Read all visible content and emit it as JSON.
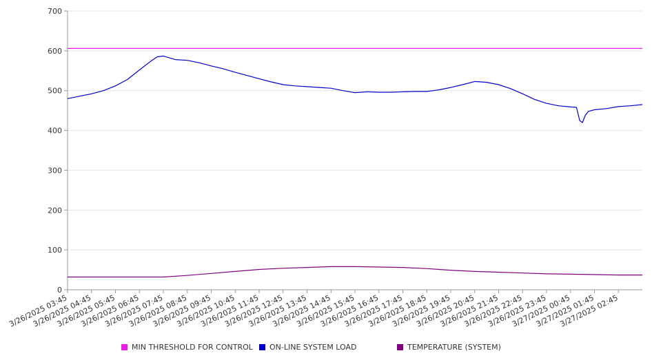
{
  "chart_data": {
    "type": "line",
    "ylim": [
      0,
      700
    ],
    "y_ticks": [
      0,
      100,
      200,
      300,
      400,
      500,
      600,
      700
    ],
    "x_range": [
      "3/26/2025 03:45",
      "3/27/2025 03:45"
    ],
    "x_tick_labels": [
      "3/26/2025 03:45",
      "3/26/2025 04:45",
      "3/26/2025 05:45",
      "3/26/2025 06:45",
      "3/26/2025 07:45",
      "3/26/2025 08:45",
      "3/26/2025 09:45",
      "3/26/2025 10:45",
      "3/26/2025 11:45",
      "3/26/2025 12:45",
      "3/26/2025 13:45",
      "3/26/2025 14:45",
      "3/26/2025 15:45",
      "3/26/2025 16:45",
      "3/26/2025 17:45",
      "3/26/2025 18:45",
      "3/26/2025 19:45",
      "3/26/2025 20:45",
      "3/26/2025 21:45",
      "3/26/2025 22:45",
      "3/26/2025 23:45",
      "3/27/2025 00:45",
      "3/27/2025 01:45",
      "3/27/2025 02:45"
    ],
    "grid": true,
    "legend_position": "bottom",
    "series": [
      {
        "name": "MIN THRESHOLD FOR CONTROL",
        "color": "#e61ee6",
        "points": [
          [
            "3/26/2025 03:45",
            606
          ],
          [
            "3/27/2025 03:45",
            606
          ]
        ]
      },
      {
        "name": "ON-LINE SYSTEM LOAD",
        "color": "#0000cc",
        "points": [
          [
            "3/26/2025 03:45",
            480
          ],
          [
            "3/26/2025 04:15",
            486
          ],
          [
            "3/26/2025 04:45",
            492
          ],
          [
            "3/26/2025 05:15",
            500
          ],
          [
            "3/26/2025 05:45",
            512
          ],
          [
            "3/26/2025 06:15",
            528
          ],
          [
            "3/26/2025 06:45",
            552
          ],
          [
            "3/26/2025 07:15",
            575
          ],
          [
            "3/26/2025 07:30",
            585
          ],
          [
            "3/26/2025 07:45",
            587
          ],
          [
            "3/26/2025 08:15",
            578
          ],
          [
            "3/26/2025 08:45",
            576
          ],
          [
            "3/26/2025 09:15",
            570
          ],
          [
            "3/26/2025 09:45",
            562
          ],
          [
            "3/26/2025 10:15",
            555
          ],
          [
            "3/26/2025 10:45",
            546
          ],
          [
            "3/26/2025 11:15",
            538
          ],
          [
            "3/26/2025 11:45",
            530
          ],
          [
            "3/26/2025 12:15",
            522
          ],
          [
            "3/26/2025 12:45",
            515
          ],
          [
            "3/26/2025 13:15",
            512
          ],
          [
            "3/26/2025 13:45",
            510
          ],
          [
            "3/26/2025 14:15",
            508
          ],
          [
            "3/26/2025 14:45",
            506
          ],
          [
            "3/26/2025 15:15",
            500
          ],
          [
            "3/26/2025 15:45",
            495
          ],
          [
            "3/26/2025 16:15",
            497
          ],
          [
            "3/26/2025 16:45",
            496
          ],
          [
            "3/26/2025 17:15",
            496
          ],
          [
            "3/26/2025 17:45",
            497
          ],
          [
            "3/26/2025 18:15",
            498
          ],
          [
            "3/26/2025 18:45",
            498
          ],
          [
            "3/26/2025 19:15",
            502
          ],
          [
            "3/26/2025 19:45",
            508
          ],
          [
            "3/26/2025 20:15",
            515
          ],
          [
            "3/26/2025 20:45",
            523
          ],
          [
            "3/26/2025 21:15",
            521
          ],
          [
            "3/26/2025 21:45",
            515
          ],
          [
            "3/26/2025 22:15",
            505
          ],
          [
            "3/26/2025 22:45",
            492
          ],
          [
            "3/26/2025 23:15",
            478
          ],
          [
            "3/26/2025 23:45",
            468
          ],
          [
            "3/27/2025 00:15",
            462
          ],
          [
            "3/27/2025 00:45",
            459
          ],
          [
            "3/27/2025 01:00",
            458
          ],
          [
            "3/27/2025 01:08",
            425
          ],
          [
            "3/27/2025 01:15",
            420
          ],
          [
            "3/27/2025 01:22",
            438
          ],
          [
            "3/27/2025 01:30",
            448
          ],
          [
            "3/27/2025 01:45",
            452
          ],
          [
            "3/27/2025 02:15",
            455
          ],
          [
            "3/27/2025 02:45",
            460
          ],
          [
            "3/27/2025 03:15",
            462
          ],
          [
            "3/27/2025 03:45",
            465
          ]
        ]
      },
      {
        "name": "TEMPERATURE (SYSTEM)",
        "color": "#800080",
        "points": [
          [
            "3/26/2025 03:45",
            32
          ],
          [
            "3/26/2025 05:45",
            32
          ],
          [
            "3/26/2025 07:45",
            32
          ],
          [
            "3/26/2025 08:45",
            36
          ],
          [
            "3/26/2025 09:45",
            41
          ],
          [
            "3/26/2025 10:45",
            46
          ],
          [
            "3/26/2025 11:45",
            51
          ],
          [
            "3/26/2025 12:45",
            54
          ],
          [
            "3/26/2025 13:45",
            56
          ],
          [
            "3/26/2025 14:45",
            58
          ],
          [
            "3/26/2025 15:45",
            58
          ],
          [
            "3/26/2025 16:45",
            57
          ],
          [
            "3/26/2025 17:45",
            56
          ],
          [
            "3/26/2025 18:45",
            53
          ],
          [
            "3/26/2025 19:45",
            49
          ],
          [
            "3/26/2025 20:45",
            46
          ],
          [
            "3/26/2025 21:45",
            44
          ],
          [
            "3/26/2025 22:45",
            42
          ],
          [
            "3/26/2025 23:45",
            40
          ],
          [
            "3/27/2025 00:45",
            39
          ],
          [
            "3/27/2025 01:45",
            38
          ],
          [
            "3/27/2025 02:45",
            37
          ],
          [
            "3/27/2025 03:45",
            37
          ]
        ]
      }
    ]
  }
}
